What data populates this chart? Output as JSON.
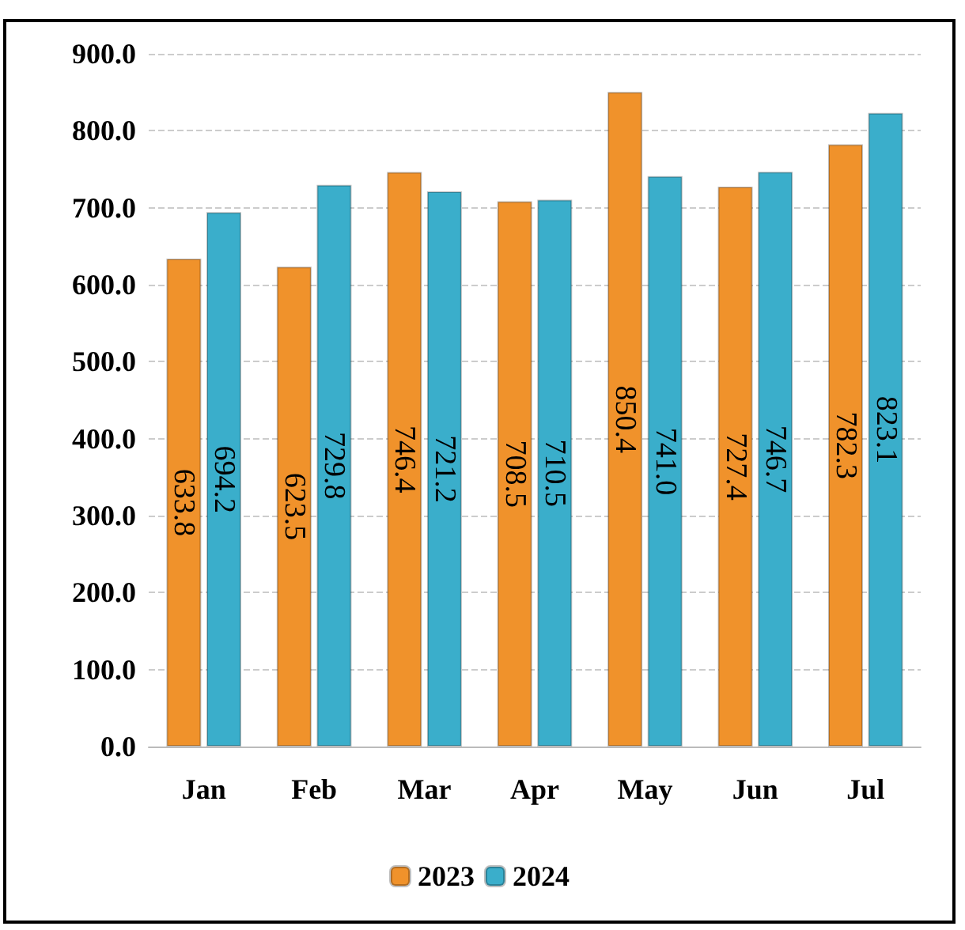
{
  "chart_data": {
    "type": "bar",
    "categories": [
      "Jan",
      "Feb",
      "Mar",
      "Apr",
      "May",
      "Jun",
      "Jul"
    ],
    "series": [
      {
        "name": "2023",
        "color": "#f0922b",
        "values": [
          633.8,
          623.5,
          746.4,
          708.5,
          850.4,
          727.4,
          782.3
        ],
        "value_labels": [
          "633.8",
          "623.5",
          "746.4",
          "708.5",
          "850.4",
          "727.4",
          "782.3"
        ]
      },
      {
        "name": "2024",
        "color": "#3aaecb",
        "values": [
          694.2,
          729.8,
          721.2,
          710.5,
          741.0,
          746.7,
          823.1
        ],
        "value_labels": [
          "694.2",
          "729.8",
          "721.2",
          "710.5",
          "741.0",
          "746.7",
          "823.1"
        ]
      }
    ],
    "ylim": [
      0,
      900
    ],
    "yticks": [
      {
        "value": 0,
        "label": "0.0"
      },
      {
        "value": 100,
        "label": "100.0"
      },
      {
        "value": 200,
        "label": "200.0"
      },
      {
        "value": 300,
        "label": "300.0"
      },
      {
        "value": 400,
        "label": "400.0"
      },
      {
        "value": 500,
        "label": "500.0"
      },
      {
        "value": 600,
        "label": "600.0"
      },
      {
        "value": 700,
        "label": "700.0"
      },
      {
        "value": 800,
        "label": "800.0"
      },
      {
        "value": 900,
        "label": "900.0"
      }
    ],
    "grid": "y",
    "legend": "bottom"
  }
}
